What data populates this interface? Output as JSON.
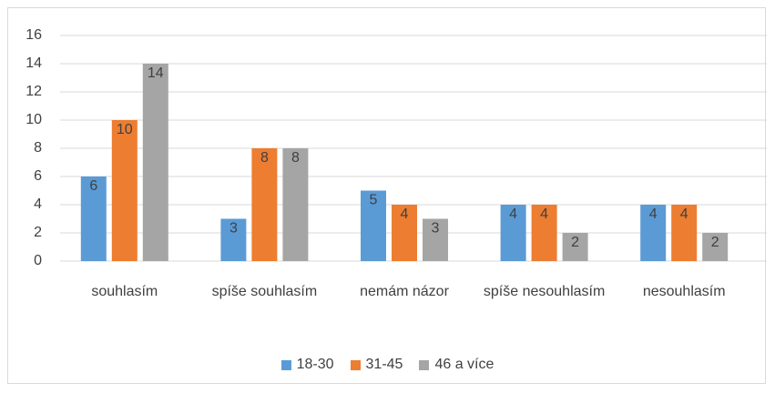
{
  "chart_data": {
    "type": "bar",
    "categories": [
      "souhlasím",
      "spíše souhlasím",
      "nemám názor",
      "spíše nesouhlasím",
      "nesouhlasím"
    ],
    "series": [
      {
        "name": "18-30",
        "color": "#5b9bd5",
        "values": [
          6,
          3,
          5,
          4,
          4
        ]
      },
      {
        "name": "31-45",
        "color": "#ed7d31",
        "values": [
          10,
          8,
          4,
          4,
          4
        ]
      },
      {
        "name": "46 a více",
        "color": "#a5a5a5",
        "values": [
          14,
          8,
          3,
          2,
          2
        ]
      }
    ],
    "ylim": [
      0,
      16
    ],
    "yticks": [
      0,
      2,
      4,
      6,
      8,
      10,
      12,
      14,
      16
    ],
    "grid": true,
    "legend": "bottom"
  }
}
